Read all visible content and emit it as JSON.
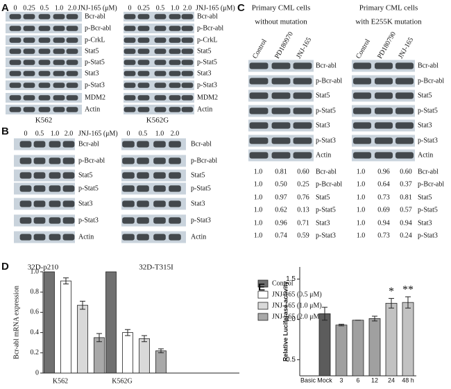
{
  "blot_panels": [
    {
      "panel_label": "A",
      "groups": [
        {
          "dose_unit": "JNJ-165 (μM)",
          "lanes": [
            "0",
            "0.25",
            "0.5",
            "1.0",
            "2.0"
          ],
          "rows": [
            "Bcr-abl",
            "p-Bcr-abl",
            "p-CrkL",
            "Stat5",
            "p-Stat5",
            "Stat3",
            "p-Stat3",
            "MDM2",
            "Actin"
          ],
          "caption": "K562"
        },
        {
          "dose_unit": "JNJ-165 (μM)",
          "lanes": [
            "0",
            "0.25",
            "0.5",
            "1.0",
            "2.0"
          ],
          "rows": [
            "Bcr-abl",
            "p-Bcr-abl",
            "p-CrkL",
            "Stat5",
            "p-Stat5",
            "Stat3",
            "p-Stat3",
            "MDM2",
            "Actin"
          ],
          "caption": "K562G"
        }
      ]
    },
    {
      "panel_label": "B",
      "dose_unit": "JNJ-165 (μM)",
      "groups": [
        {
          "lanes": [
            "0",
            "0.5",
            "1.0",
            "2.0"
          ],
          "rows": [
            "Bcr-abl",
            "p-Bcr-abl",
            "Stat5",
            "p-Stat5",
            "Stat3",
            "p-Stat3",
            "Actin"
          ],
          "caption": "32D-p210"
        },
        {
          "lanes": [
            "0",
            "0.5",
            "1.0",
            "2.0"
          ],
          "rows": [
            "Bcr-abl",
            "p-Bcr-abl",
            "Stat5",
            "p-Stat5",
            "Stat3",
            "p-Stat3",
            "Actin"
          ],
          "caption": "32D-T315I"
        }
      ]
    },
    {
      "panel_label": "C",
      "groups": [
        {
          "title": [
            "Primary CML cells",
            "without mutation"
          ],
          "lanes": [
            "Control",
            "PD180970",
            "JNJ-165"
          ],
          "rows": [
            "Bcr-abl",
            "p-Bcr-abl",
            "Stat5",
            "p-Stat5",
            "Stat3",
            "p-Stat3",
            "Actin"
          ],
          "quantification": [
            {
              "values": [
                "1.0",
                "0.81",
                "0.60"
              ],
              "label": "Bcr-abl"
            },
            {
              "values": [
                "1.0",
                "0.50",
                "0.25"
              ],
              "label": "p-Bcr-abl"
            },
            {
              "values": [
                "1.0",
                "0.97",
                "0.76"
              ],
              "label": "Stat5"
            },
            {
              "values": [
                "1.0",
                "0.62",
                "0.13"
              ],
              "label": "p-Stat5"
            },
            {
              "values": [
                "1.0",
                "0.96",
                "0.71"
              ],
              "label": "Stat3"
            },
            {
              "values": [
                "1.0",
                "0.74",
                "0.59"
              ],
              "label": "p-Stat3"
            }
          ]
        },
        {
          "title": [
            "Primary CML cells",
            "with E255K mutation"
          ],
          "lanes": [
            "Control",
            "PD180790",
            "JNJ-165"
          ],
          "rows": [
            "Bcr-abl",
            "p-Bcr-abl",
            "Stat5",
            "p-Stat5",
            "Stat3",
            "p-Stat3",
            "Actin"
          ],
          "quantification": [
            {
              "values": [
                "1.0",
                "0.96",
                "0.60"
              ],
              "label": "Bcr-abl"
            },
            {
              "values": [
                "1.0",
                "0.64",
                "0.37"
              ],
              "label": "p-Bcr-abl"
            },
            {
              "values": [
                "1.0",
                "0.73",
                "0.81"
              ],
              "label": "Stat5"
            },
            {
              "values": [
                "1.0",
                "0.69",
                "0.57"
              ],
              "label": "p-Stat5"
            },
            {
              "values": [
                "1.0",
                "0.94",
                "0.94"
              ],
              "label": "Stat3"
            },
            {
              "values": [
                "1.0",
                "0.73",
                "0.24"
              ],
              "label": "p-Stat3"
            }
          ]
        }
      ]
    }
  ],
  "chart_data": [
    {
      "type": "bar",
      "panel_label": "D",
      "y_label": "Bcr-abl mRNA expression",
      "categories": [
        "K562",
        "K562G"
      ],
      "series": [
        {
          "name": "Control",
          "color": "#707070",
          "values": [
            1.0,
            1.0
          ]
        },
        {
          "name": "JNJ-165 (0.5 μM)",
          "color": "#ffffff",
          "values": [
            0.91,
            0.4
          ],
          "errors": [
            0.03,
            0.03
          ]
        },
        {
          "name": "JNJ-165 (1.0 μM)",
          "color": "#d9d9d9",
          "values": [
            0.67,
            0.34
          ],
          "errors": [
            0.04,
            0.03
          ]
        },
        {
          "name": "JNJ-165 (2.0 μM)",
          "color": "#a9a9a9",
          "values": [
            0.35,
            0.22
          ],
          "errors": [
            0.04,
            0.02
          ]
        }
      ],
      "ylim": [
        0,
        1.0
      ],
      "yticks": [
        0,
        0.2,
        0.4,
        0.6,
        0.8,
        {
          "value": 1.0,
          "label": "1.0"
        }
      ]
    },
    {
      "type": "bar",
      "panel_label": "E",
      "y_label": "Relative Luciferase activity",
      "categories": [
        "Basic",
        "Mock",
        "3",
        "6",
        "12",
        "24",
        "48 h"
      ],
      "values": [
        null,
        1.07,
        0.93,
        0.99,
        1.01,
        1.2,
        1.21
      ],
      "errors": [
        null,
        0.08,
        0.01,
        0.0,
        0.03,
        0.06,
        0.07
      ],
      "colors": [
        "#a0a0a0",
        "#5c5c5c",
        "#a0a0a0",
        "#a0a0a0",
        "#a0a0a0",
        "#c2c2c2",
        "#c2c2c2"
      ],
      "annotations": [
        {
          "text": "*",
          "category": "24"
        },
        {
          "text": "**",
          "category": "48 h"
        }
      ],
      "ylim": [
        0.3,
        1.65
      ],
      "yticks": [
        {
          "value": 0.5,
          "label": "0.5"
        },
        {
          "value": 1.0,
          "label": "1.0"
        },
        {
          "value": 1.5,
          "label": "1.5"
        }
      ]
    }
  ]
}
